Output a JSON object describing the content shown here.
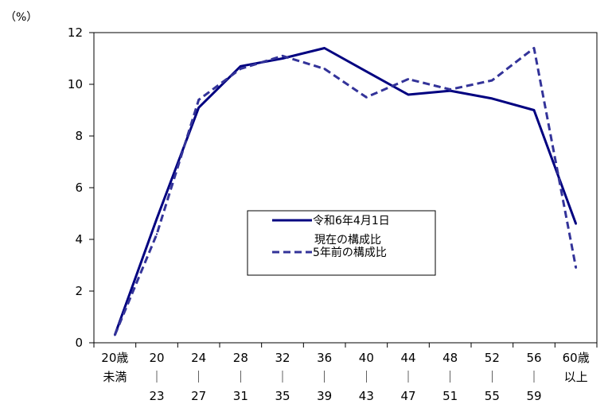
{
  "chart_data": {
    "type": "line",
    "unit_label": "（%）",
    "ylim": [
      0,
      12
    ],
    "yticks": [
      "0",
      "2",
      "4",
      "6",
      "8",
      "10",
      "12"
    ],
    "categories": [
      [
        "20歳",
        "未満"
      ],
      [
        "20",
        "｜",
        "23"
      ],
      [
        "24",
        "｜",
        "27"
      ],
      [
        "28",
        "｜",
        "31"
      ],
      [
        "32",
        "｜",
        "35"
      ],
      [
        "36",
        "｜",
        "39"
      ],
      [
        "40",
        "｜",
        "43"
      ],
      [
        "44",
        "｜",
        "47"
      ],
      [
        "48",
        "｜",
        "51"
      ],
      [
        "52",
        "｜",
        "55"
      ],
      [
        "56",
        "｜",
        "59"
      ],
      [
        "60歳",
        "以上"
      ]
    ],
    "series": [
      {
        "name_lines": [
          "令和6年4月1日",
          "現在の構成比"
        ],
        "style": "solid",
        "color": "#000080",
        "values": [
          0.3,
          4.8,
          9.1,
          10.7,
          11.0,
          11.4,
          10.5,
          9.6,
          9.75,
          9.45,
          9.0,
          4.6
        ]
      },
      {
        "name_lines": [
          "5年前の構成比"
        ],
        "style": "dashed",
        "color": "#333399",
        "values": [
          0.3,
          4.2,
          9.4,
          10.6,
          11.1,
          10.6,
          9.5,
          10.2,
          9.8,
          10.15,
          11.4,
          2.9
        ]
      }
    ],
    "legend_position": "center",
    "grid": false
  }
}
